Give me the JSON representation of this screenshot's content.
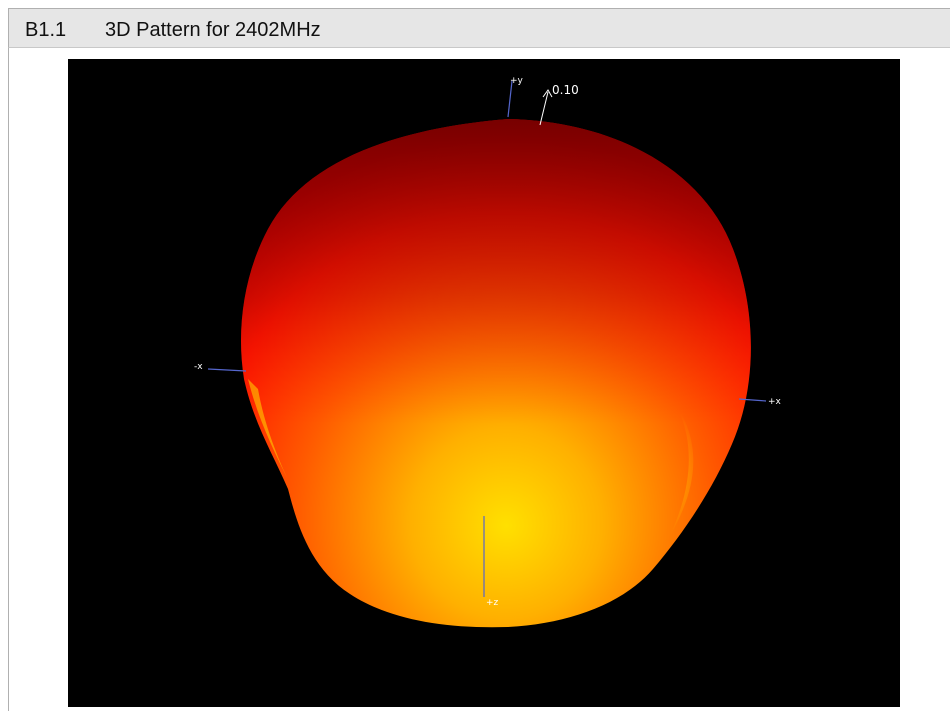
{
  "section": {
    "number": "B1.1",
    "title": "3D Pattern for 2402MHz"
  },
  "plot": {
    "scale_label": "0.10",
    "axes": {
      "y": "+y",
      "neg_x": "-x",
      "pos_x": "+x",
      "z": "+z"
    },
    "colors": {
      "background": "#000000",
      "hot": "#ffd400",
      "mid": "#ff6a00",
      "red": "#ff1a00",
      "dark_red": "#8a0000",
      "axis": "#5566cc"
    }
  }
}
